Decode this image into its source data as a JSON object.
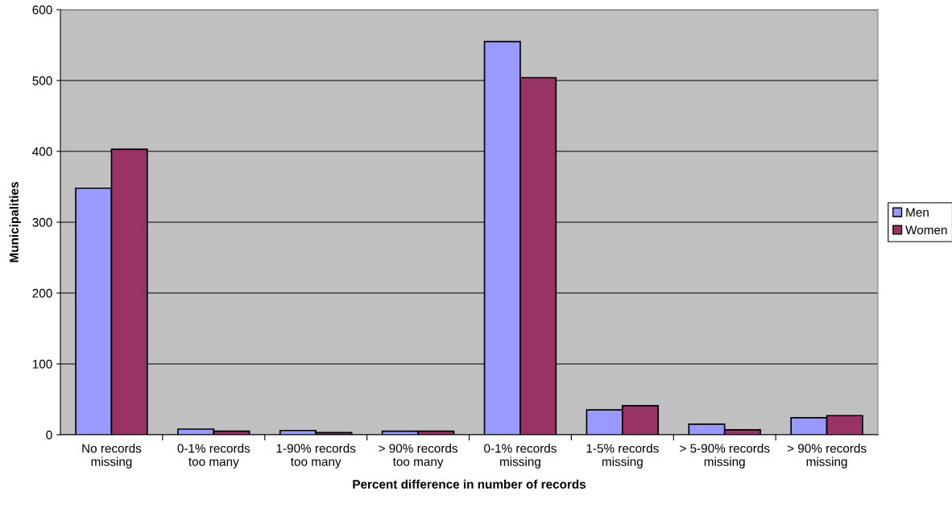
{
  "chart_data": {
    "type": "bar",
    "xlabel": "Percent difference in number of records",
    "ylabel": "Municipalities",
    "categories": [
      "No records\nmissing",
      "0-1% records\ntoo many",
      "1-90% records\ntoo many",
      "> 90% records\ntoo many",
      "0-1% records\nmissing",
      "1-5% records\nmissing",
      "> 5-90% records\nmissing",
      "> 90% records\nmissing"
    ],
    "series": [
      {
        "name": "Men",
        "color": "#9999ff",
        "values": [
          348,
          8,
          6,
          5,
          555,
          35,
          15,
          24
        ]
      },
      {
        "name": "Women",
        "color": "#993366",
        "values": [
          403,
          5,
          3,
          5,
          504,
          41,
          7,
          27
        ]
      }
    ],
    "ylim": [
      0,
      600
    ],
    "yticks": [
      0,
      100,
      200,
      300,
      400,
      500,
      600
    ],
    "grid": "y",
    "legend": "right"
  }
}
